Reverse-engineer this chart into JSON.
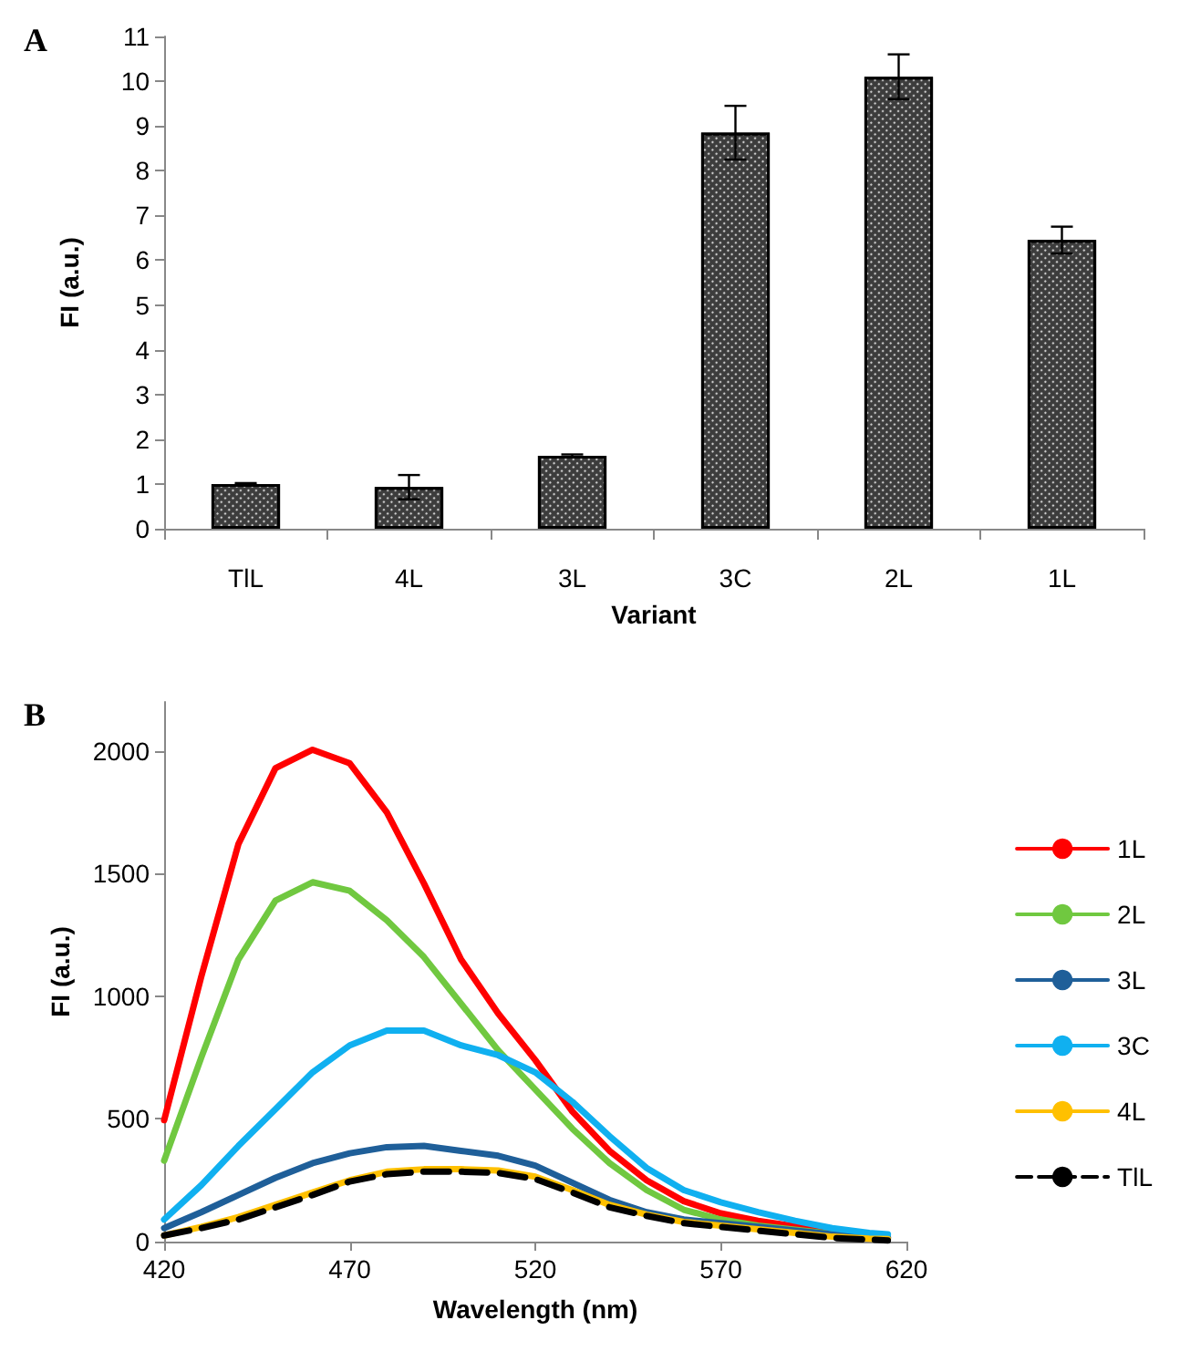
{
  "chart_data": [
    {
      "type": "bar",
      "title": "A",
      "xlabel": "Variant",
      "ylabel": "FI (a.u.)",
      "categories": [
        "TlL",
        "4L",
        "3L",
        "3C",
        "2L",
        "1L"
      ],
      "values": [
        1.0,
        0.93,
        1.63,
        8.85,
        10.1,
        6.45
      ],
      "errors": [
        0.02,
        0.27,
        0.03,
        0.6,
        0.5,
        0.3
      ],
      "color": "#3c3c3c",
      "ylim": [
        0,
        11
      ],
      "yticks": [
        0,
        1,
        2,
        3,
        4,
        5,
        6,
        7,
        8,
        9,
        10,
        11
      ],
      "grid": false,
      "legend": false
    },
    {
      "type": "line",
      "title": "B",
      "xlabel": "Wavelength (nm)",
      "ylabel": "FI (a.u.)",
      "x": [
        420,
        430,
        440,
        450,
        460,
        470,
        480,
        490,
        500,
        510,
        520,
        530,
        540,
        550,
        560,
        570,
        580,
        590,
        600,
        610,
        615
      ],
      "series": [
        {
          "name": "1L",
          "color": "#ff0000",
          "values": [
            495,
            1080,
            1620,
            1930,
            2005,
            1950,
            1750,
            1460,
            1150,
            930,
            740,
            530,
            370,
            250,
            165,
            115,
            85,
            62,
            42,
            25,
            18
          ]
        },
        {
          "name": "2L",
          "color": "#70c840",
          "values": [
            330,
            750,
            1150,
            1390,
            1465,
            1430,
            1310,
            1160,
            970,
            780,
            620,
            460,
            320,
            210,
            130,
            90,
            65,
            48,
            32,
            20,
            15
          ]
        },
        {
          "name": "3L",
          "color": "#1f5f99",
          "values": [
            55,
            120,
            190,
            260,
            320,
            360,
            385,
            390,
            370,
            350,
            310,
            240,
            170,
            120,
            90,
            75,
            60,
            45,
            30,
            20,
            15
          ]
        },
        {
          "name": "3C",
          "color": "#10b0f0",
          "values": [
            90,
            230,
            390,
            540,
            690,
            800,
            860,
            860,
            800,
            760,
            690,
            570,
            430,
            300,
            210,
            160,
            120,
            85,
            55,
            35,
            30
          ]
        },
        {
          "name": "4L",
          "color": "#ffc000",
          "values": [
            25,
            60,
            100,
            150,
            200,
            250,
            285,
            295,
            295,
            290,
            265,
            210,
            150,
            110,
            80,
            65,
            50,
            35,
            20,
            12,
            10
          ]
        },
        {
          "name": "TlL",
          "color": "#000000",
          "line_style": "dashed",
          "values": [
            25,
            55,
            90,
            140,
            190,
            245,
            275,
            285,
            285,
            280,
            255,
            200,
            140,
            105,
            75,
            60,
            45,
            30,
            15,
            8,
            5
          ]
        }
      ],
      "xlim": [
        420,
        620
      ],
      "xticks": [
        420,
        470,
        520,
        570,
        620
      ],
      "ylim": [
        0,
        2200
      ],
      "yticks": [
        0,
        500,
        1000,
        1500,
        2000
      ],
      "grid": false,
      "legend": "right",
      "marker": "none"
    }
  ]
}
